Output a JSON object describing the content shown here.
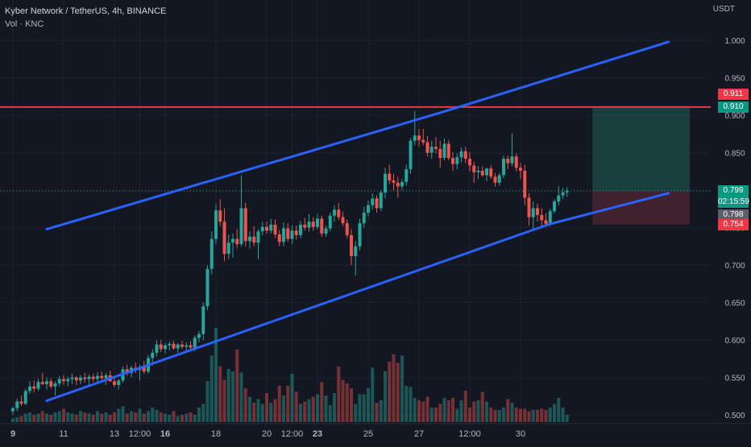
{
  "header": {
    "symbol_line": "Kyber Network / TetherUS, 4h, BINANCE",
    "volume_line": "Vol · KNC",
    "currency": "USDT"
  },
  "colors": {
    "background": "#131722",
    "up": "#26a69a",
    "down": "#ef5350",
    "channel": "#2962ff",
    "resistance": "#f23645",
    "target_zone": "#1e5f55",
    "stop_zone": "#5e2a35"
  },
  "price_labels": {
    "resistance": "0.911",
    "target": "0.910",
    "current": "0.799",
    "countdown": "02:15:59",
    "prev_close": "0.798",
    "stop": "0.754"
  },
  "chart_data": {
    "type": "candlestick",
    "title": "Kyber Network / TetherUS, 4h, BINANCE",
    "y_axis": {
      "label": "USDT",
      "ticks": [
        "1.000",
        "0.950",
        "0.900",
        "0.850",
        "0.800",
        "0.750",
        "0.700",
        "0.650",
        "0.600",
        "0.550",
        "0.500"
      ],
      "ylim": [
        0.497,
        1.027
      ]
    },
    "x_axis": {
      "ticks": [
        "9",
        "11",
        "13",
        "12:00",
        "16",
        "18",
        "20",
        "12:00",
        "23",
        "25",
        "27",
        "12:00",
        "30"
      ],
      "tick_bar_index": [
        0,
        12,
        24,
        30,
        36,
        48,
        60,
        66,
        72,
        84,
        96,
        108,
        120
      ]
    },
    "candles": [
      [
        0.505,
        0.511,
        0.5,
        0.509
      ],
      [
        0.509,
        0.522,
        0.505,
        0.518
      ],
      [
        0.518,
        0.526,
        0.512,
        0.515
      ],
      [
        0.515,
        0.535,
        0.513,
        0.532
      ],
      [
        0.532,
        0.545,
        0.528,
        0.538
      ],
      [
        0.538,
        0.546,
        0.53,
        0.535
      ],
      [
        0.535,
        0.548,
        0.532,
        0.544
      ],
      [
        0.544,
        0.556,
        0.54,
        0.541
      ],
      [
        0.541,
        0.55,
        0.534,
        0.545
      ],
      [
        0.545,
        0.549,
        0.535,
        0.538
      ],
      [
        0.538,
        0.545,
        0.526,
        0.542
      ],
      [
        0.542,
        0.552,
        0.538,
        0.548
      ],
      [
        0.548,
        0.553,
        0.54,
        0.545
      ],
      [
        0.545,
        0.551,
        0.538,
        0.548
      ],
      [
        0.548,
        0.555,
        0.541,
        0.55
      ],
      [
        0.55,
        0.552,
        0.54,
        0.546
      ],
      [
        0.546,
        0.553,
        0.541,
        0.55
      ],
      [
        0.55,
        0.556,
        0.543,
        0.548
      ],
      [
        0.548,
        0.554,
        0.54,
        0.551
      ],
      [
        0.551,
        0.555,
        0.544,
        0.548
      ],
      [
        0.548,
        0.557,
        0.542,
        0.552
      ],
      [
        0.552,
        0.558,
        0.547,
        0.549
      ],
      [
        0.549,
        0.556,
        0.54,
        0.553
      ],
      [
        0.553,
        0.559,
        0.544,
        0.545
      ],
      [
        0.545,
        0.549,
        0.537,
        0.54
      ],
      [
        0.54,
        0.548,
        0.534,
        0.546
      ],
      [
        0.546,
        0.565,
        0.543,
        0.561
      ],
      [
        0.561,
        0.567,
        0.552,
        0.556
      ],
      [
        0.556,
        0.566,
        0.55,
        0.563
      ],
      [
        0.563,
        0.57,
        0.556,
        0.56
      ],
      [
        0.56,
        0.567,
        0.546,
        0.564
      ],
      [
        0.564,
        0.572,
        0.555,
        0.558
      ],
      [
        0.558,
        0.58,
        0.555,
        0.576
      ],
      [
        0.576,
        0.588,
        0.566,
        0.583
      ],
      [
        0.583,
        0.6,
        0.578,
        0.594
      ],
      [
        0.594,
        0.6,
        0.584,
        0.588
      ],
      [
        0.588,
        0.596,
        0.582,
        0.593
      ],
      [
        0.593,
        0.598,
        0.586,
        0.595
      ],
      [
        0.595,
        0.599,
        0.587,
        0.589
      ],
      [
        0.589,
        0.596,
        0.583,
        0.594
      ],
      [
        0.594,
        0.599,
        0.588,
        0.591
      ],
      [
        0.591,
        0.597,
        0.585,
        0.593
      ],
      [
        0.593,
        0.598,
        0.587,
        0.59
      ],
      [
        0.59,
        0.606,
        0.585,
        0.603
      ],
      [
        0.603,
        0.612,
        0.597,
        0.608
      ],
      [
        0.608,
        0.65,
        0.6,
        0.645
      ],
      [
        0.645,
        0.7,
        0.64,
        0.695
      ],
      [
        0.695,
        0.745,
        0.688,
        0.735
      ],
      [
        0.735,
        0.782,
        0.728,
        0.773
      ],
      [
        0.773,
        0.788,
        0.752,
        0.758
      ],
      [
        0.758,
        0.776,
        0.705,
        0.715
      ],
      [
        0.715,
        0.741,
        0.708,
        0.73
      ],
      [
        0.73,
        0.742,
        0.71,
        0.735
      ],
      [
        0.735,
        0.748,
        0.722,
        0.728
      ],
      [
        0.728,
        0.82,
        0.725,
        0.776
      ],
      [
        0.776,
        0.783,
        0.725,
        0.732
      ],
      [
        0.732,
        0.745,
        0.722,
        0.738
      ],
      [
        0.738,
        0.752,
        0.725,
        0.73
      ],
      [
        0.73,
        0.748,
        0.708,
        0.745
      ],
      [
        0.745,
        0.758,
        0.74,
        0.751
      ],
      [
        0.751,
        0.758,
        0.742,
        0.746
      ],
      [
        0.746,
        0.762,
        0.742,
        0.754
      ],
      [
        0.754,
        0.761,
        0.736,
        0.741
      ],
      [
        0.741,
        0.747,
        0.725,
        0.731
      ],
      [
        0.731,
        0.757,
        0.725,
        0.749
      ],
      [
        0.749,
        0.756,
        0.731,
        0.735
      ],
      [
        0.735,
        0.753,
        0.728,
        0.746
      ],
      [
        0.746,
        0.753,
        0.734,
        0.74
      ],
      [
        0.74,
        0.759,
        0.736,
        0.754
      ],
      [
        0.754,
        0.763,
        0.746,
        0.75
      ],
      [
        0.75,
        0.768,
        0.745,
        0.758
      ],
      [
        0.758,
        0.764,
        0.746,
        0.751
      ],
      [
        0.751,
        0.768,
        0.748,
        0.762
      ],
      [
        0.762,
        0.766,
        0.738,
        0.742
      ],
      [
        0.742,
        0.753,
        0.738,
        0.749
      ],
      [
        0.749,
        0.77,
        0.745,
        0.766
      ],
      [
        0.766,
        0.78,
        0.758,
        0.774
      ],
      [
        0.774,
        0.783,
        0.76,
        0.764
      ],
      [
        0.764,
        0.771,
        0.752,
        0.756
      ],
      [
        0.756,
        0.761,
        0.736,
        0.74
      ],
      [
        0.74,
        0.748,
        0.7,
        0.712
      ],
      [
        0.712,
        0.732,
        0.686,
        0.725
      ],
      [
        0.725,
        0.762,
        0.72,
        0.756
      ],
      [
        0.756,
        0.778,
        0.75,
        0.77
      ],
      [
        0.77,
        0.786,
        0.765,
        0.78
      ],
      [
        0.78,
        0.796,
        0.774,
        0.789
      ],
      [
        0.789,
        0.793,
        0.77,
        0.776
      ],
      [
        0.776,
        0.8,
        0.772,
        0.797
      ],
      [
        0.797,
        0.83,
        0.789,
        0.822
      ],
      [
        0.822,
        0.834,
        0.808,
        0.813
      ],
      [
        0.813,
        0.822,
        0.8,
        0.81
      ],
      [
        0.81,
        0.818,
        0.79,
        0.805
      ],
      [
        0.805,
        0.815,
        0.8,
        0.811
      ],
      [
        0.811,
        0.834,
        0.806,
        0.828
      ],
      [
        0.828,
        0.87,
        0.822,
        0.866
      ],
      [
        0.866,
        0.906,
        0.86,
        0.873
      ],
      [
        0.873,
        0.882,
        0.858,
        0.867
      ],
      [
        0.867,
        0.882,
        0.86,
        0.864
      ],
      [
        0.864,
        0.872,
        0.845,
        0.85
      ],
      [
        0.85,
        0.866,
        0.842,
        0.858
      ],
      [
        0.858,
        0.871,
        0.849,
        0.855
      ],
      [
        0.855,
        0.866,
        0.83,
        0.843
      ],
      [
        0.843,
        0.869,
        0.84,
        0.862
      ],
      [
        0.862,
        0.867,
        0.84,
        0.843
      ],
      [
        0.843,
        0.851,
        0.826,
        0.835
      ],
      [
        0.835,
        0.849,
        0.828,
        0.844
      ],
      [
        0.844,
        0.857,
        0.837,
        0.852
      ],
      [
        0.852,
        0.858,
        0.836,
        0.842
      ],
      [
        0.842,
        0.851,
        0.825,
        0.833
      ],
      [
        0.833,
        0.838,
        0.81,
        0.824
      ],
      [
        0.824,
        0.832,
        0.815,
        0.826
      ],
      [
        0.826,
        0.832,
        0.818,
        0.82
      ],
      [
        0.82,
        0.83,
        0.812,
        0.829
      ],
      [
        0.829,
        0.834,
        0.815,
        0.818
      ],
      [
        0.818,
        0.823,
        0.805,
        0.81
      ],
      [
        0.81,
        0.823,
        0.806,
        0.82
      ],
      [
        0.82,
        0.846,
        0.816,
        0.842
      ],
      [
        0.842,
        0.846,
        0.828,
        0.836
      ],
      [
        0.836,
        0.876,
        0.832,
        0.845
      ],
      [
        0.845,
        0.849,
        0.825,
        0.83
      ],
      [
        0.83,
        0.836,
        0.815,
        0.826
      ],
      [
        0.826,
        0.834,
        0.78,
        0.79
      ],
      [
        0.79,
        0.796,
        0.753,
        0.764
      ],
      [
        0.764,
        0.785,
        0.748,
        0.776
      ],
      [
        0.776,
        0.782,
        0.758,
        0.767
      ],
      [
        0.767,
        0.776,
        0.751,
        0.76
      ],
      [
        0.76,
        0.769,
        0.752,
        0.755
      ],
      [
        0.755,
        0.775,
        0.752,
        0.772
      ],
      [
        0.772,
        0.788,
        0.769,
        0.785
      ],
      [
        0.785,
        0.805,
        0.78,
        0.793
      ],
      [
        0.793,
        0.803,
        0.788,
        0.797
      ],
      [
        0.797,
        0.804,
        0.791,
        0.799
      ]
    ],
    "volume": [
      3,
      4,
      5,
      7,
      8,
      6,
      7,
      9,
      7,
      6,
      8,
      9,
      11,
      8,
      7,
      6,
      9,
      8,
      7,
      6,
      9,
      7,
      8,
      6,
      8,
      11,
      13,
      7,
      9,
      8,
      11,
      7,
      9,
      12,
      10,
      8,
      7,
      6,
      9,
      5,
      6,
      7,
      8,
      6,
      12,
      15,
      34,
      55,
      78,
      46,
      35,
      44,
      42,
      60,
      41,
      28,
      21,
      16,
      19,
      15,
      24,
      16,
      19,
      30,
      22,
      30,
      40,
      25,
      15,
      17,
      19,
      21,
      23,
      33,
      22,
      14,
      24,
      46,
      35,
      32,
      28,
      15,
      23,
      23,
      28,
      45,
      16,
      18,
      42,
      50,
      56,
      49,
      55,
      30,
      29,
      20,
      18,
      17,
      21,
      12,
      12,
      15,
      20,
      18,
      20,
      11,
      18,
      26,
      12,
      17,
      18,
      25,
      17,
      12,
      10,
      10,
      12,
      19,
      16,
      12,
      11,
      11,
      9,
      10,
      10,
      11,
      10,
      12,
      15,
      20,
      12,
      6
    ],
    "volume_scale_max": 100,
    "channel_upper": [
      [
        8,
        0.748
      ],
      [
        102,
        0.905
      ],
      [
        155,
        0.998
      ]
    ],
    "channel_lower": [
      [
        8,
        0.519
      ],
      [
        127,
        0.755
      ],
      [
        155,
        0.796
      ]
    ],
    "resistance_level": 0.911,
    "position": {
      "entry": 0.799,
      "target": 0.91,
      "stop": 0.754,
      "start_bar": 137,
      "end_bar": 160
    },
    "grid": true,
    "legend": "top-left"
  }
}
